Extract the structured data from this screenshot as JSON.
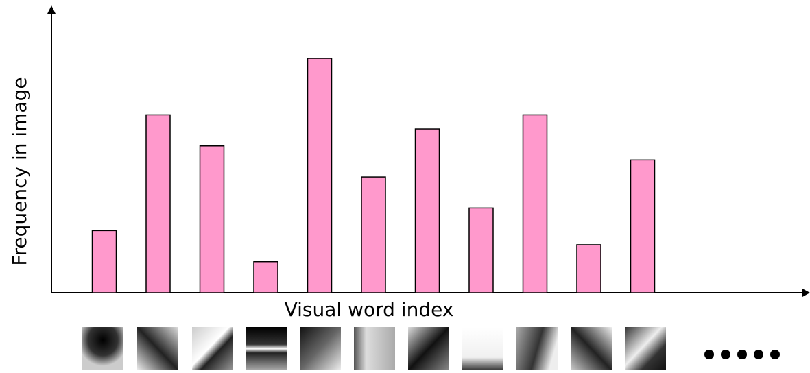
{
  "chart_data": {
    "type": "bar",
    "y_label": "Frequency in image",
    "x_label": "Visual word index",
    "categories": [
      null,
      null,
      null,
      null,
      null,
      null,
      null,
      null,
      null,
      null,
      null
    ],
    "values": [
      22,
      63,
      52,
      11,
      83,
      41,
      58,
      30,
      63,
      17,
      47
    ],
    "color": "#ff99cc",
    "ylim": [
      0,
      100
    ]
  }
}
